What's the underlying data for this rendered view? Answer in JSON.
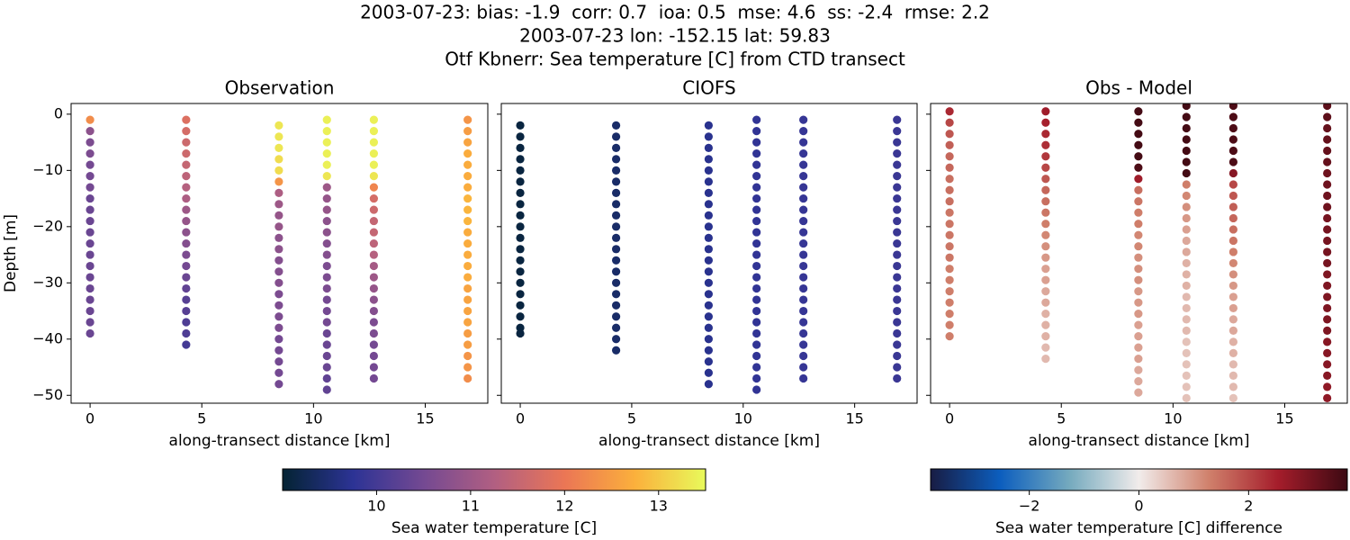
{
  "suptitle": [
    "2003-07-23: bias: -1.9  corr: 0.7  ioa: 0.5  mse: 4.6  ss: -2.4  rmse: 2.2",
    "2003-07-23 lon: -152.15 lat: 59.83",
    "Otf Kbnerr: Sea temperature [C] from CTD transect"
  ],
  "colorbars": [
    {
      "label": "Sea water temperature [C]",
      "lim": [
        9.0,
        13.5
      ],
      "ticks": [
        10,
        11,
        12,
        13
      ],
      "colormap": [
        "#042333",
        "#2c3395",
        "#744992",
        "#b15f82",
        "#eb7655",
        "#fbb03c",
        "#e8fa5b"
      ]
    },
    {
      "label": "Sea water temperature [C] difference",
      "lim": [
        -3.8,
        3.8
      ],
      "ticks": [
        {
          "value": -2,
          "label": "−2"
        },
        0,
        2
      ],
      "colormap": [
        "#181c43",
        "#0c5ebe",
        "#75aabe",
        "#f1eceb",
        "#d0816c",
        "#a51d2b",
        "#3c0912"
      ]
    }
  ],
  "chart_data": [
    {
      "type": "scatter",
      "title": "Observation",
      "xlabel": "along-transect distance [km]",
      "ylabel": "Depth [m]",
      "colorbar": 0,
      "show_yticklabels": true,
      "xlim": [
        -0.85,
        17.8
      ],
      "ylim": [
        -51.4,
        1.9
      ],
      "xticks": [
        0,
        5,
        10,
        15
      ],
      "yticks": [
        0,
        {
          "value": -10,
          "label": "−10"
        },
        {
          "value": -20,
          "label": "−20"
        },
        {
          "value": -30,
          "label": "−30"
        },
        {
          "value": -40,
          "label": "−40"
        },
        {
          "value": -50,
          "label": "−50"
        }
      ],
      "series": [
        {
          "x": 0,
          "y": [
            -1,
            -3,
            -5,
            -7,
            -9,
            -11,
            -13,
            -15,
            -17,
            -19,
            -21,
            -23,
            -25,
            -27,
            -29,
            -31,
            -33,
            -35,
            -37,
            -39
          ],
          "values": [
            12.3,
            10.8,
            10.6,
            10.6,
            10.5,
            10.5,
            10.5,
            10.4,
            10.4,
            10.4,
            10.4,
            10.4,
            10.4,
            10.4,
            10.4,
            10.4,
            10.4,
            10.4,
            10.4,
            10.4
          ]
        },
        {
          "x": 4.3,
          "y": [
            -1,
            -3,
            -5,
            -7,
            -9,
            -11,
            -13,
            -15,
            -17,
            -19,
            -21,
            -23,
            -25,
            -27,
            -29,
            -31,
            -33,
            -35,
            -37,
            -39,
            -41
          ],
          "values": [
            11.8,
            11.7,
            11.6,
            11.6,
            11.5,
            11.4,
            11.3,
            11.2,
            11.0,
            10.9,
            10.8,
            10.7,
            10.6,
            10.5,
            10.4,
            10.3,
            10.2,
            10.2,
            10.1,
            10.1,
            10.0
          ]
        },
        {
          "x": 8.45,
          "y": [
            -2,
            -4,
            -6,
            -8,
            -10,
            -12,
            -14,
            -16,
            -18,
            -20,
            -22,
            -24,
            -26,
            -28,
            -30,
            -32,
            -34,
            -36,
            -38,
            -40,
            -42,
            -44,
            -46,
            -48
          ],
          "values": [
            13.3,
            13.3,
            13.3,
            13.2,
            13.2,
            12.4,
            11.2,
            11.0,
            10.9,
            10.9,
            10.8,
            10.8,
            10.7,
            10.7,
            10.7,
            10.6,
            10.6,
            10.6,
            10.6,
            10.5,
            10.5,
            10.5,
            10.5,
            10.5
          ]
        },
        {
          "x": 10.6,
          "y": [
            -1,
            -3,
            -5,
            -7,
            -9,
            -11,
            -13,
            -15,
            -17,
            -19,
            -21,
            -23,
            -25,
            -27,
            -29,
            -31,
            -33,
            -35,
            -37,
            -39,
            -41,
            -43,
            -45,
            -47,
            -49
          ],
          "values": [
            13.4,
            13.4,
            13.4,
            13.4,
            13.4,
            13.3,
            11.0,
            10.9,
            10.9,
            10.8,
            10.8,
            10.7,
            10.7,
            10.6,
            10.6,
            10.6,
            10.5,
            10.5,
            10.5,
            10.4,
            10.4,
            10.4,
            10.4,
            10.3,
            10.3
          ]
        },
        {
          "x": 12.7,
          "y": [
            -1,
            -3,
            -5,
            -7,
            -9,
            -11,
            -13,
            -15,
            -17,
            -19,
            -21,
            -23,
            -25,
            -27,
            -29,
            -31,
            -33,
            -35,
            -37,
            -39,
            -41,
            -43,
            -45,
            -47
          ],
          "values": [
            13.4,
            13.4,
            13.4,
            13.4,
            13.4,
            13.3,
            12.2,
            11.7,
            11.6,
            11.5,
            11.5,
            11.4,
            11.3,
            11.1,
            11.0,
            10.9,
            10.8,
            10.7,
            10.6,
            10.6,
            10.5,
            10.5,
            10.5,
            10.5
          ]
        },
        {
          "x": 16.9,
          "y": [
            -1,
            -3,
            -5,
            -7,
            -9,
            -11,
            -13,
            -15,
            -17,
            -19,
            -21,
            -23,
            -25,
            -27,
            -29,
            -31,
            -33,
            -35,
            -37,
            -39,
            -41,
            -43,
            -45,
            -47
          ],
          "values": [
            12.4,
            12.5,
            12.6,
            12.7,
            12.7,
            12.7,
            12.7,
            12.8,
            12.8,
            12.8,
            12.7,
            12.7,
            12.7,
            12.7,
            12.7,
            12.6,
            12.6,
            12.6,
            12.6,
            12.5,
            12.5,
            12.4,
            12.4,
            12.3
          ]
        }
      ]
    },
    {
      "type": "scatter",
      "title": "CIOFS",
      "xlabel": "along-transect distance [km]",
      "colorbar": 0,
      "show_yticklabels": false,
      "xlim": [
        -0.85,
        17.8
      ],
      "ylim": [
        -51.4,
        1.9
      ],
      "xticks": [
        0,
        5,
        10,
        15
      ],
      "yticks": [
        0,
        -10,
        -20,
        -30,
        -40,
        -50
      ],
      "series": [
        {
          "x": 0,
          "y": [
            -2,
            -4,
            -6,
            -8,
            -10,
            -12,
            -14,
            -16,
            -18,
            -20,
            -22,
            -24,
            -26,
            -28,
            -30,
            -32,
            -34,
            -36,
            -38,
            -39
          ],
          "values": [
            9.1,
            9.1,
            9.1,
            9.1,
            9.1,
            9.1,
            9.1,
            9.1,
            9.1,
            9.1,
            9.1,
            9.1,
            9.1,
            9.1,
            9.1,
            9.1,
            9.1,
            9.1,
            9.1,
            9.1
          ]
        },
        {
          "x": 4.3,
          "y": [
            -2,
            -4,
            -6,
            -8,
            -10,
            -12,
            -14,
            -16,
            -18,
            -20,
            -22,
            -24,
            -26,
            -28,
            -30,
            -32,
            -34,
            -36,
            -38,
            -40,
            -42
          ],
          "values": [
            9.4,
            9.4,
            9.4,
            9.4,
            9.4,
            9.4,
            9.4,
            9.4,
            9.4,
            9.4,
            9.4,
            9.4,
            9.4,
            9.4,
            9.4,
            9.4,
            9.4,
            9.4,
            9.4,
            9.4,
            9.4
          ]
        },
        {
          "x": 8.45,
          "y": [
            -2,
            -4,
            -6,
            -8,
            -10,
            -12,
            -14,
            -16,
            -18,
            -20,
            -22,
            -24,
            -26,
            -28,
            -30,
            -32,
            -34,
            -36,
            -38,
            -40,
            -42,
            -44,
            -46,
            -48
          ],
          "values": [
            9.7,
            9.7,
            9.7,
            9.7,
            9.7,
            9.7,
            9.7,
            9.7,
            9.7,
            9.7,
            9.7,
            9.7,
            9.7,
            9.7,
            9.7,
            9.7,
            9.7,
            9.7,
            9.7,
            9.7,
            9.7,
            9.7,
            9.7,
            9.7
          ]
        },
        {
          "x": 10.6,
          "y": [
            -1,
            -3,
            -5,
            -7,
            -9,
            -11,
            -13,
            -15,
            -17,
            -19,
            -21,
            -23,
            -25,
            -27,
            -29,
            -31,
            -33,
            -35,
            -37,
            -39,
            -41,
            -43,
            -45,
            -47,
            -49
          ],
          "values": [
            9.8,
            9.8,
            9.8,
            9.8,
            9.8,
            9.8,
            9.8,
            9.8,
            9.8,
            9.8,
            9.8,
            9.8,
            9.8,
            9.8,
            9.8,
            9.8,
            9.8,
            9.8,
            9.8,
            9.8,
            9.8,
            9.8,
            9.8,
            9.8,
            9.8
          ]
        },
        {
          "x": 12.7,
          "y": [
            -1,
            -3,
            -5,
            -7,
            -9,
            -11,
            -13,
            -15,
            -17,
            -19,
            -21,
            -23,
            -25,
            -27,
            -29,
            -31,
            -33,
            -35,
            -37,
            -39,
            -41,
            -43,
            -45,
            -47
          ],
          "values": [
            9.85,
            9.85,
            9.85,
            9.85,
            9.85,
            9.85,
            9.85,
            9.85,
            9.85,
            9.85,
            9.85,
            9.85,
            9.85,
            9.85,
            9.85,
            9.85,
            9.85,
            9.85,
            9.85,
            9.85,
            9.85,
            9.85,
            9.85,
            9.85
          ]
        },
        {
          "x": 16.9,
          "y": [
            -1,
            -3,
            -5,
            -7,
            -9,
            -11,
            -13,
            -15,
            -17,
            -19,
            -21,
            -23,
            -25,
            -27,
            -29,
            -31,
            -33,
            -35,
            -37,
            -39,
            -41,
            -43,
            -45,
            -47
          ],
          "values": [
            9.9,
            9.9,
            9.9,
            9.9,
            9.9,
            9.9,
            9.9,
            9.9,
            9.9,
            9.9,
            9.9,
            9.9,
            9.9,
            9.9,
            9.9,
            9.9,
            9.9,
            9.9,
            9.9,
            9.9,
            9.9,
            9.9,
            9.9,
            9.9
          ]
        }
      ]
    },
    {
      "type": "scatter",
      "title": "Obs - Model",
      "xlabel": "along-transect distance [km]",
      "colorbar": 1,
      "show_yticklabels": false,
      "xlim": [
        -0.85,
        17.8
      ],
      "ylim": [
        -51.4,
        1.9
      ],
      "xticks": [
        0,
        5,
        10,
        15
      ],
      "yticks": [
        0,
        -10,
        -20,
        -30,
        -40,
        -50
      ],
      "series": [
        {
          "x": 0,
          "y": [
            0.5,
            -1.5,
            -3.5,
            -5.5,
            -7.5,
            -9.5,
            -11.5,
            -13.5,
            -15.5,
            -17.5,
            -19.5,
            -21.5,
            -23.5,
            -25.5,
            -27.5,
            -29.5,
            -31.5,
            -33.5,
            -35.5,
            -37.5,
            -39.5
          ],
          "values": [
            2.4,
            2.0,
            1.8,
            1.7,
            1.6,
            1.6,
            1.5,
            1.5,
            1.5,
            1.4,
            1.4,
            1.4,
            1.4,
            1.4,
            1.3,
            1.3,
            1.3,
            1.3,
            1.3,
            1.3,
            1.3
          ]
        },
        {
          "x": 4.3,
          "y": [
            0.5,
            -1.5,
            -3.5,
            -5.5,
            -7.5,
            -9.5,
            -11.5,
            -13.5,
            -15.5,
            -17.5,
            -19.5,
            -21.5,
            -23.5,
            -25.5,
            -27.5,
            -29.5,
            -31.5,
            -33.5,
            -35.5,
            -37.5,
            -39.5,
            -41.5,
            -43.5
          ],
          "values": [
            2.6,
            2.5,
            2.4,
            2.3,
            2.2,
            2.0,
            1.8,
            1.6,
            1.5,
            1.4,
            1.3,
            1.2,
            1.1,
            1.0,
            0.9,
            0.9,
            0.8,
            0.8,
            0.7,
            0.7,
            0.7,
            0.6,
            0.6
          ]
        },
        {
          "x": 8.45,
          "y": [
            0.5,
            -1.5,
            -3.5,
            -5.5,
            -7.5,
            -9.5,
            -11.5,
            -13.5,
            -15.5,
            -17.5,
            -19.5,
            -21.5,
            -23.5,
            -25.5,
            -27.5,
            -29.5,
            -31.5,
            -33.5,
            -35.5,
            -37.5,
            -39.5,
            -41.5,
            -43.5,
            -45.5,
            -47.5,
            -49.5
          ],
          "values": [
            3.7,
            3.7,
            3.7,
            3.7,
            3.7,
            3.6,
            2.6,
            1.5,
            1.4,
            1.3,
            1.3,
            1.2,
            1.2,
            1.1,
            1.1,
            1.1,
            1.0,
            1.0,
            1.0,
            0.9,
            0.9,
            0.9,
            0.9,
            0.8,
            0.8,
            0.8
          ]
        },
        {
          "x": 10.6,
          "y": [
            1.5,
            -0.5,
            -2.5,
            -4.5,
            -6.5,
            -8.5,
            -10.5,
            -12.5,
            -14.5,
            -16.5,
            -18.5,
            -20.5,
            -22.5,
            -24.5,
            -26.5,
            -28.5,
            -30.5,
            -32.5,
            -34.5,
            -36.5,
            -38.5,
            -40.5,
            -42.5,
            -44.5,
            -46.5,
            -48.5,
            -50.5
          ],
          "values": [
            3.7,
            3.7,
            3.7,
            3.7,
            3.7,
            3.7,
            3.7,
            1.3,
            1.2,
            1.1,
            1.0,
            0.9,
            0.8,
            0.8,
            0.7,
            0.7,
            0.7,
            0.6,
            0.6,
            0.6,
            0.6,
            0.5,
            0.5,
            0.5,
            0.5,
            0.5,
            0.5
          ]
        },
        {
          "x": 12.7,
          "y": [
            1.5,
            -0.5,
            -2.5,
            -4.5,
            -6.5,
            -8.5,
            -10.5,
            -12.5,
            -14.5,
            -16.5,
            -18.5,
            -20.5,
            -22.5,
            -24.5,
            -26.5,
            -28.5,
            -30.5,
            -32.5,
            -34.5,
            -36.5,
            -38.5,
            -40.5,
            -42.5,
            -44.5,
            -46.5,
            -48.5,
            -50.5
          ],
          "values": [
            3.6,
            3.6,
            3.6,
            3.6,
            3.6,
            3.6,
            2.9,
            2.0,
            1.8,
            1.7,
            1.6,
            1.5,
            1.4,
            1.3,
            1.2,
            1.1,
            1.0,
            0.9,
            0.9,
            0.8,
            0.8,
            0.7,
            0.7,
            0.6,
            0.6,
            0.6,
            0.5
          ]
        },
        {
          "x": 16.9,
          "y": [
            1.5,
            -0.5,
            -2.5,
            -4.5,
            -6.5,
            -8.5,
            -10.5,
            -12.5,
            -14.5,
            -16.5,
            -18.5,
            -20.5,
            -22.5,
            -24.5,
            -26.5,
            -28.5,
            -30.5,
            -32.5,
            -34.5,
            -36.5,
            -38.5,
            -40.5,
            -42.5,
            -44.5,
            -46.5,
            -48.5,
            -50.5
          ],
          "values": [
            3.4,
            3.4,
            3.3,
            3.3,
            3.3,
            3.3,
            3.2,
            3.2,
            3.2,
            3.2,
            3.1,
            3.1,
            3.1,
            3.1,
            3.1,
            3.0,
            3.0,
            3.0,
            3.0,
            3.0,
            3.0,
            2.9,
            2.9,
            2.9,
            2.9,
            2.8,
            2.8
          ]
        }
      ]
    }
  ]
}
